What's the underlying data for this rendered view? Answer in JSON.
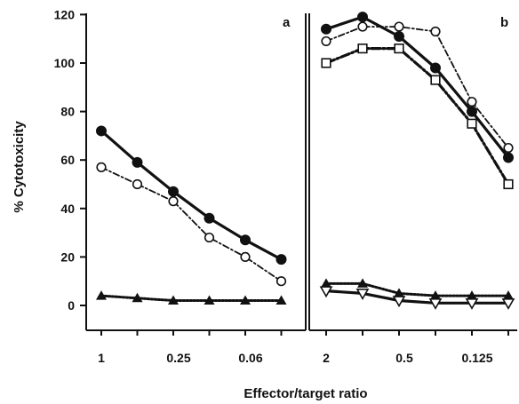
{
  "chart_data": [
    {
      "type": "line",
      "panel_label": "a",
      "ylabel": "% Cytotoxicity",
      "xlabel": "Effector/target ratio",
      "ylim": [
        -5,
        120
      ],
      "yticks": [
        0,
        20,
        40,
        60,
        80,
        100,
        120
      ],
      "x": [
        1,
        0.5,
        0.25,
        0.125,
        0.0625,
        0.03125
      ],
      "xtick_labels": [
        "1",
        "",
        "0.25",
        "",
        "0.06",
        ""
      ],
      "series": [
        {
          "marker": "filled-circle",
          "line": "solid",
          "values": [
            72,
            59,
            47,
            36,
            27,
            19
          ]
        },
        {
          "marker": "open-circle",
          "line": "dash-dot",
          "values": [
            57,
            50,
            43,
            28,
            20,
            10
          ]
        },
        {
          "marker": "filled-triangle",
          "line": "dotted",
          "values": [
            4,
            3,
            2,
            2,
            2,
            2
          ]
        }
      ]
    },
    {
      "type": "line",
      "panel_label": "b",
      "xlabel": "Effector/target ratio",
      "ylim": [
        -5,
        120
      ],
      "x": [
        2,
        1,
        0.5,
        0.25,
        0.125,
        0.0625
      ],
      "xtick_labels": [
        "2",
        "",
        "0.5",
        "",
        "0.125",
        ""
      ],
      "series": [
        {
          "marker": "filled-circle",
          "line": "solid",
          "values": [
            114,
            119,
            111,
            98,
            80,
            61
          ]
        },
        {
          "marker": "open-circle",
          "line": "dash-dot",
          "values": [
            109,
            115,
            115,
            113,
            84,
            65
          ]
        },
        {
          "marker": "open-square",
          "line": "dash-dot-heavy",
          "values": [
            100,
            106,
            106,
            93,
            75,
            50
          ]
        },
        {
          "marker": "filled-triangle",
          "line": "dotted",
          "values": [
            9,
            9,
            5,
            4,
            4,
            4
          ]
        },
        {
          "marker": "open-triangle-down",
          "line": "solid",
          "values": [
            6,
            5,
            2,
            1,
            1,
            1
          ]
        }
      ]
    }
  ]
}
